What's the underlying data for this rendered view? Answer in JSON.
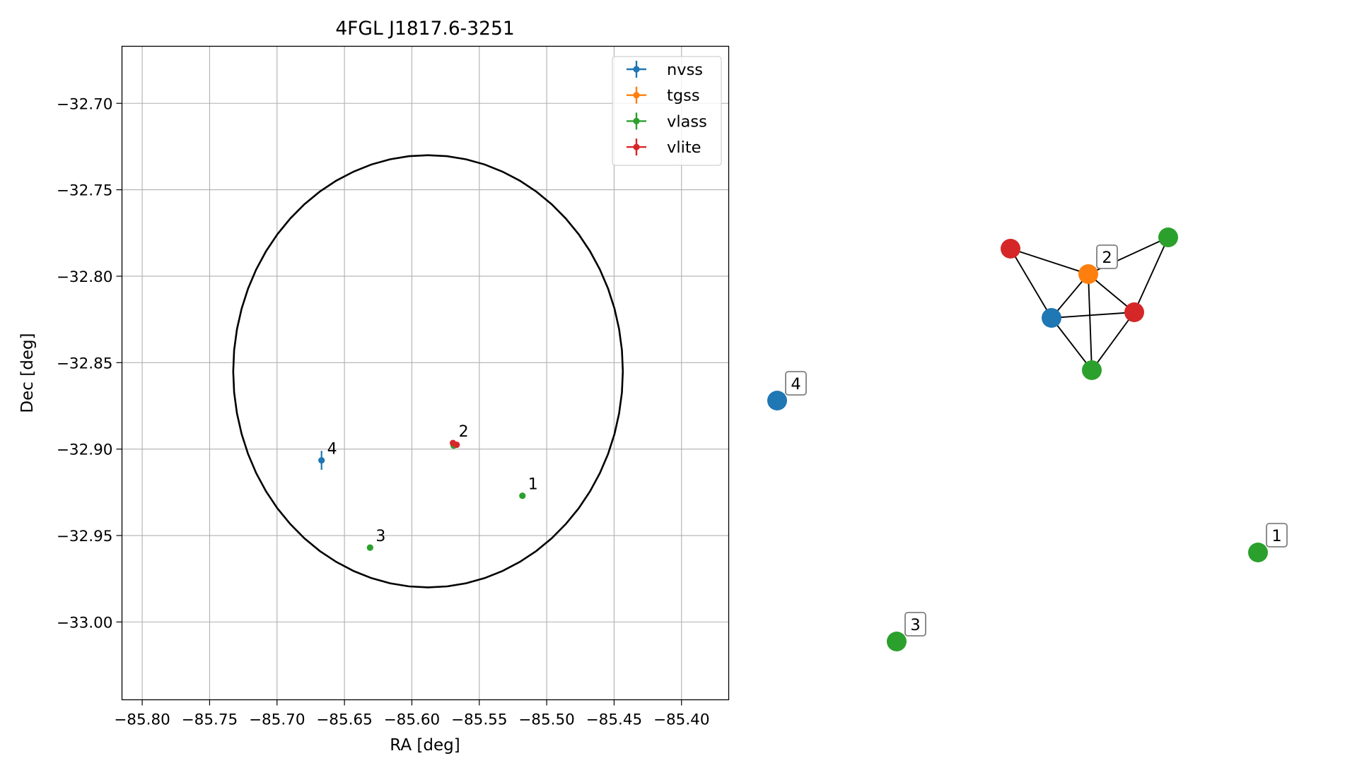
{
  "chart_data": [
    {
      "type": "scatter",
      "title": "4FGL J1817.6-3251",
      "xlabel": "RA [deg]",
      "ylabel": "Dec [deg]",
      "xlim": [
        -85.815,
        -85.365
      ],
      "ylim": [
        -33.045,
        -32.667
      ],
      "x_ticks": [
        -85.8,
        -85.75,
        -85.7,
        -85.65,
        -85.6,
        -85.55,
        -85.5,
        -85.45,
        -85.4
      ],
      "x_tick_labels": [
        "−85.80",
        "−85.75",
        "−85.70",
        "−85.65",
        "−85.60",
        "−85.55",
        "−85.50",
        "−85.45",
        "−85.40"
      ],
      "y_ticks": [
        -32.7,
        -32.75,
        -32.8,
        -32.85,
        -32.9,
        -32.95,
        -33.0
      ],
      "y_tick_labels": [
        "−32.70",
        "−32.75",
        "−32.80",
        "−32.85",
        "−32.90",
        "−32.95",
        "−33.00"
      ],
      "grid": true,
      "legend_position": "top-right",
      "ellipse": {
        "center": [
          -85.588,
          -32.855
        ],
        "semi_axis_ra": 0.1445,
        "semi_axis_dec": 0.125,
        "color": "#000000"
      },
      "series": [
        {
          "name": "nvss",
          "color": "#1f77b4",
          "points": [
            {
              "x": -85.667,
              "y": -32.9065,
              "label": "4",
              "err_y": 0.0055,
              "err_x": 0.0006
            }
          ]
        },
        {
          "name": "tgss",
          "color": "#ff7f0e",
          "points": [
            {
              "x": -85.569,
              "y": -32.897
            }
          ]
        },
        {
          "name": "vlass",
          "color": "#2ca02c",
          "points": [
            {
              "x": -85.518,
              "y": -32.927,
              "label": "1"
            },
            {
              "x": -85.569,
              "y": -32.898
            },
            {
              "x": -85.631,
              "y": -32.957,
              "label": "3"
            }
          ]
        },
        {
          "name": "vlite",
          "color": "#d62728",
          "points": [
            {
              "x": -85.5695,
              "y": -32.8965,
              "label": "2"
            },
            {
              "x": -85.5668,
              "y": -32.8975
            }
          ]
        }
      ]
    },
    {
      "type": "graph",
      "nodes": [
        {
          "id": "a",
          "color": "#d62728"
        },
        {
          "id": "b",
          "color": "#ff7f0e",
          "label": "2"
        },
        {
          "id": "c",
          "color": "#2ca02c"
        },
        {
          "id": "d",
          "color": "#1f77b4"
        },
        {
          "id": "e",
          "color": "#d62728"
        },
        {
          "id": "f",
          "color": "#2ca02c"
        },
        {
          "id": "g",
          "color": "#1f77b4",
          "label": "4"
        },
        {
          "id": "h",
          "color": "#2ca02c",
          "label": "1"
        },
        {
          "id": "i",
          "color": "#2ca02c",
          "label": "3"
        }
      ],
      "edges": [
        [
          "a",
          "b"
        ],
        [
          "a",
          "d"
        ],
        [
          "b",
          "c"
        ],
        [
          "b",
          "d"
        ],
        [
          "b",
          "e"
        ],
        [
          "b",
          "f"
        ],
        [
          "c",
          "e"
        ],
        [
          "d",
          "e"
        ],
        [
          "d",
          "f"
        ],
        [
          "e",
          "f"
        ]
      ]
    }
  ]
}
